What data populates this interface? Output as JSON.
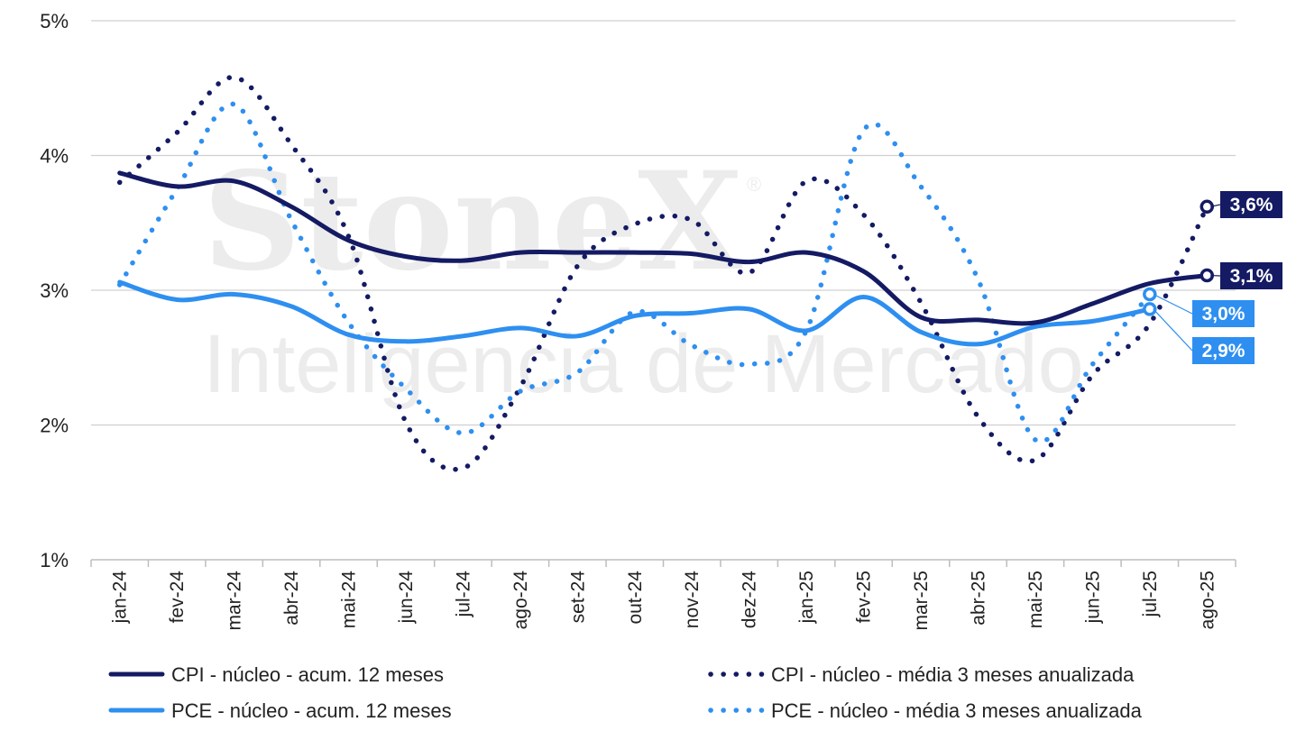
{
  "chart_data": {
    "type": "line",
    "categories": [
      "jan-24",
      "fev-24",
      "mar-24",
      "abr-24",
      "mai-24",
      "jun-24",
      "jul-24",
      "ago-24",
      "set-24",
      "out-24",
      "nov-24",
      "dez-24",
      "jan-25",
      "fev-25",
      "mar-25",
      "abr-25",
      "mai-25",
      "jun-25",
      "jul-25",
      "ago-25"
    ],
    "y_ticks": [
      "1%",
      "2%",
      "3%",
      "4%",
      "5%"
    ],
    "ylim": [
      1,
      5
    ],
    "grid": true,
    "legend_position": "bottom",
    "series": [
      {
        "name": "CPI - núcleo - acum. 12 meses",
        "style": "solid",
        "color": "#141a63",
        "values": [
          3.87,
          3.77,
          3.81,
          3.62,
          3.37,
          3.25,
          3.22,
          3.28,
          3.28,
          3.28,
          3.27,
          3.21,
          3.28,
          3.14,
          2.8,
          2.78,
          2.76,
          2.9,
          3.05,
          3.11
        ]
      },
      {
        "name": "PCE - núcleo - acum. 12 meses",
        "style": "solid",
        "color": "#2e8ff0",
        "values": [
          3.06,
          2.93,
          2.97,
          2.88,
          2.67,
          2.62,
          2.66,
          2.72,
          2.66,
          2.81,
          2.83,
          2.86,
          2.7,
          2.95,
          2.69,
          2.6,
          2.73,
          2.77,
          2.86,
          null
        ]
      },
      {
        "name": "CPI - núcleo - média 3 meses anualizada",
        "style": "dotted",
        "color": "#141a63",
        "values": [
          3.8,
          4.17,
          4.58,
          4.08,
          3.4,
          2.02,
          1.68,
          2.28,
          3.18,
          3.49,
          3.52,
          3.13,
          3.81,
          3.56,
          2.91,
          2.06,
          1.74,
          2.37,
          2.75,
          3.62
        ]
      },
      {
        "name": "PCE - núcleo - média 3 meses anualizada",
        "style": "dotted",
        "color": "#2e8ff0",
        "values": [
          3.04,
          3.75,
          4.38,
          3.52,
          2.76,
          2.27,
          1.94,
          2.25,
          2.39,
          2.84,
          2.59,
          2.45,
          2.7,
          4.19,
          3.77,
          3.08,
          1.89,
          2.45,
          2.97,
          null
        ]
      }
    ],
    "end_labels": [
      {
        "text": "3,6%",
        "series": 2,
        "color": "#141a63"
      },
      {
        "text": "3,1%",
        "series": 0,
        "color": "#141a63"
      },
      {
        "text": "3,0%",
        "series": 3,
        "color": "#2e8ff0"
      },
      {
        "text": "2,9%",
        "series": 1,
        "color": "#2e8ff0"
      }
    ]
  },
  "watermark": {
    "brand": "StoneX",
    "registered": "®",
    "tagline": "Inteligencia de Mercado"
  }
}
